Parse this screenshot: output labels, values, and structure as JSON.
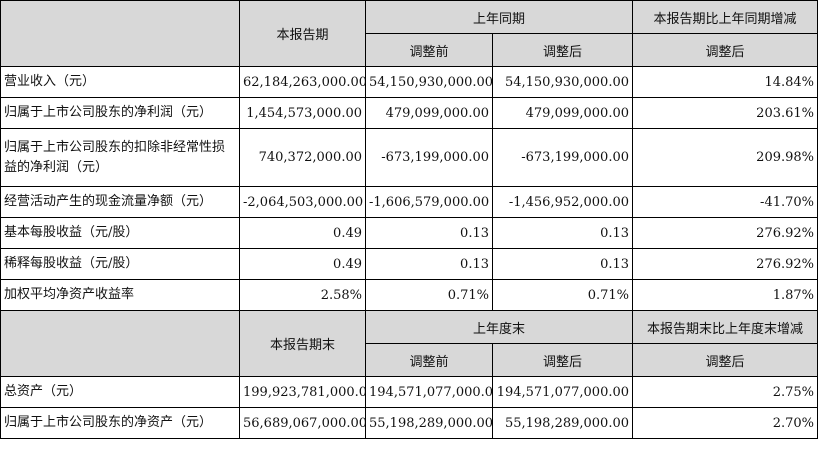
{
  "section1": {
    "header": {
      "current": "本报告期",
      "prior": "上年同期",
      "change": "本报告期比上年同期增减",
      "before": "调整前",
      "after": "调整后",
      "change_after": "调整后"
    },
    "rows": [
      {
        "label": "营业收入（元）",
        "current": "62,184,263,000.00",
        "before": "54,150,930,000.00",
        "after": "54,150,930,000.00",
        "change": "14.84%"
      },
      {
        "label": "归属于上市公司股东的净利润（元）",
        "current": "1,454,573,000.00",
        "before": "479,099,000.00",
        "after": "479,099,000.00",
        "change": "203.61%"
      },
      {
        "label": "归属于上市公司股东的扣除非经常性损益的净利润（元）",
        "current": "740,372,000.00",
        "before": "-673,199,000.00",
        "after": "-673,199,000.00",
        "change": "209.98%"
      },
      {
        "label": "经营活动产生的现金流量净额（元）",
        "current": "-2,064,503,000.00",
        "before": "-1,606,579,000.00",
        "after": "-1,456,952,000.00",
        "change": "-41.70%"
      },
      {
        "label": "基本每股收益（元/股）",
        "current": "0.49",
        "before": "0.13",
        "after": "0.13",
        "change": "276.92%"
      },
      {
        "label": "稀释每股收益（元/股）",
        "current": "0.49",
        "before": "0.13",
        "after": "0.13",
        "change": "276.92%"
      },
      {
        "label": "加权平均净资产收益率",
        "current": "2.58%",
        "before": "0.71%",
        "after": "0.71%",
        "change": "1.87%"
      }
    ]
  },
  "section2": {
    "header": {
      "current": "本报告期末",
      "prior": "上年度末",
      "change": "本报告期末比上年度末增减",
      "before": "调整前",
      "after": "调整后",
      "change_after": "调整后"
    },
    "rows": [
      {
        "label": "总资产（元）",
        "current": "199,923,781,000.00",
        "before": "194,571,077,000.00",
        "after": "194,571,077,000.00",
        "change": "2.75%"
      },
      {
        "label": "归属于上市公司股东的净资产（元）",
        "current": "56,689,067,000.00",
        "before": "55,198,289,000.00",
        "after": "55,198,289,000.00",
        "change": "2.70%"
      }
    ]
  }
}
